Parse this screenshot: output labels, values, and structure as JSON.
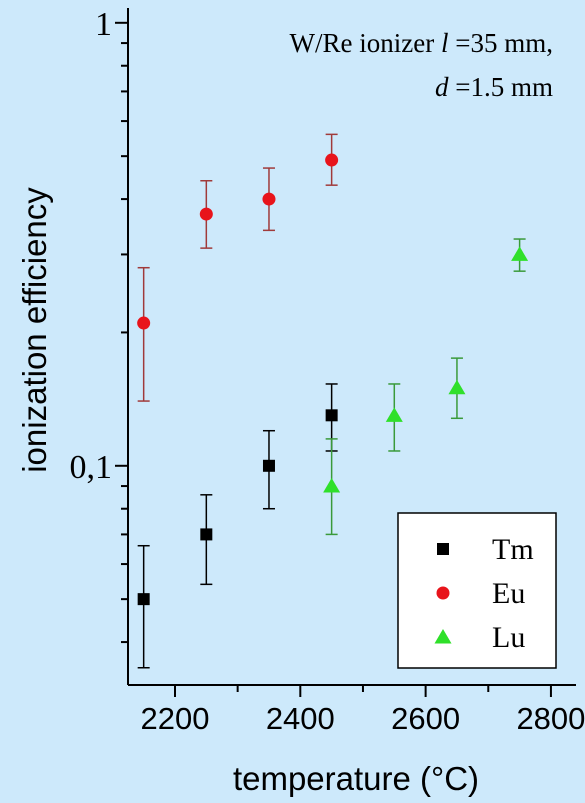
{
  "chart_data": {
    "type": "scatter",
    "title": "",
    "xlabel": "temperature (°C)",
    "ylabel": "ionization efficiency",
    "xlim": [
      2125,
      2840
    ],
    "ylim": [
      0.032,
      1.08
    ],
    "yscale": "log",
    "x_ticks": [
      2200,
      2400,
      2600,
      2800
    ],
    "x_tick_labels": [
      "2200",
      "2400",
      "2600",
      "2800"
    ],
    "y_ticks": [
      0.1,
      1
    ],
    "y_tick_labels": [
      "0,1",
      "1"
    ],
    "annotation": {
      "line1_prefix": "W/Re ionizer ",
      "line1_var": "l",
      "line1_suffix": " =35 mm,",
      "line2_var": "d",
      "line2_suffix": " =1.5 mm"
    },
    "legend_position": "bottom-right",
    "grid": false,
    "series": [
      {
        "name": "Tm",
        "marker": "square",
        "color": "#000000",
        "error_color": "#000000",
        "points": [
          {
            "x": 2150,
            "y": 0.05,
            "ylow": 0.035,
            "yhigh": 0.066
          },
          {
            "x": 2250,
            "y": 0.07,
            "ylow": 0.054,
            "yhigh": 0.086
          },
          {
            "x": 2350,
            "y": 0.1,
            "ylow": 0.08,
            "yhigh": 0.12
          },
          {
            "x": 2450,
            "y": 0.13,
            "ylow": 0.108,
            "yhigh": 0.153
          }
        ]
      },
      {
        "name": "Eu",
        "marker": "circle",
        "color": "#e8141b",
        "error_color": "#a03a3a",
        "points": [
          {
            "x": 2150,
            "y": 0.21,
            "ylow": 0.14,
            "yhigh": 0.28
          },
          {
            "x": 2250,
            "y": 0.37,
            "ylow": 0.31,
            "yhigh": 0.44
          },
          {
            "x": 2350,
            "y": 0.4,
            "ylow": 0.34,
            "yhigh": 0.47
          },
          {
            "x": 2450,
            "y": 0.49,
            "ylow": 0.43,
            "yhigh": 0.56
          }
        ]
      },
      {
        "name": "Lu",
        "marker": "triangle",
        "color": "#2fe02a",
        "error_color": "#3a9a3a",
        "points": [
          {
            "x": 2450,
            "y": 0.09,
            "ylow": 0.07,
            "yhigh": 0.115
          },
          {
            "x": 2550,
            "y": 0.13,
            "ylow": 0.108,
            "yhigh": 0.153
          },
          {
            "x": 2650,
            "y": 0.15,
            "ylow": 0.128,
            "yhigh": 0.175
          },
          {
            "x": 2750,
            "y": 0.3,
            "ylow": 0.275,
            "yhigh": 0.325
          }
        ]
      }
    ]
  }
}
